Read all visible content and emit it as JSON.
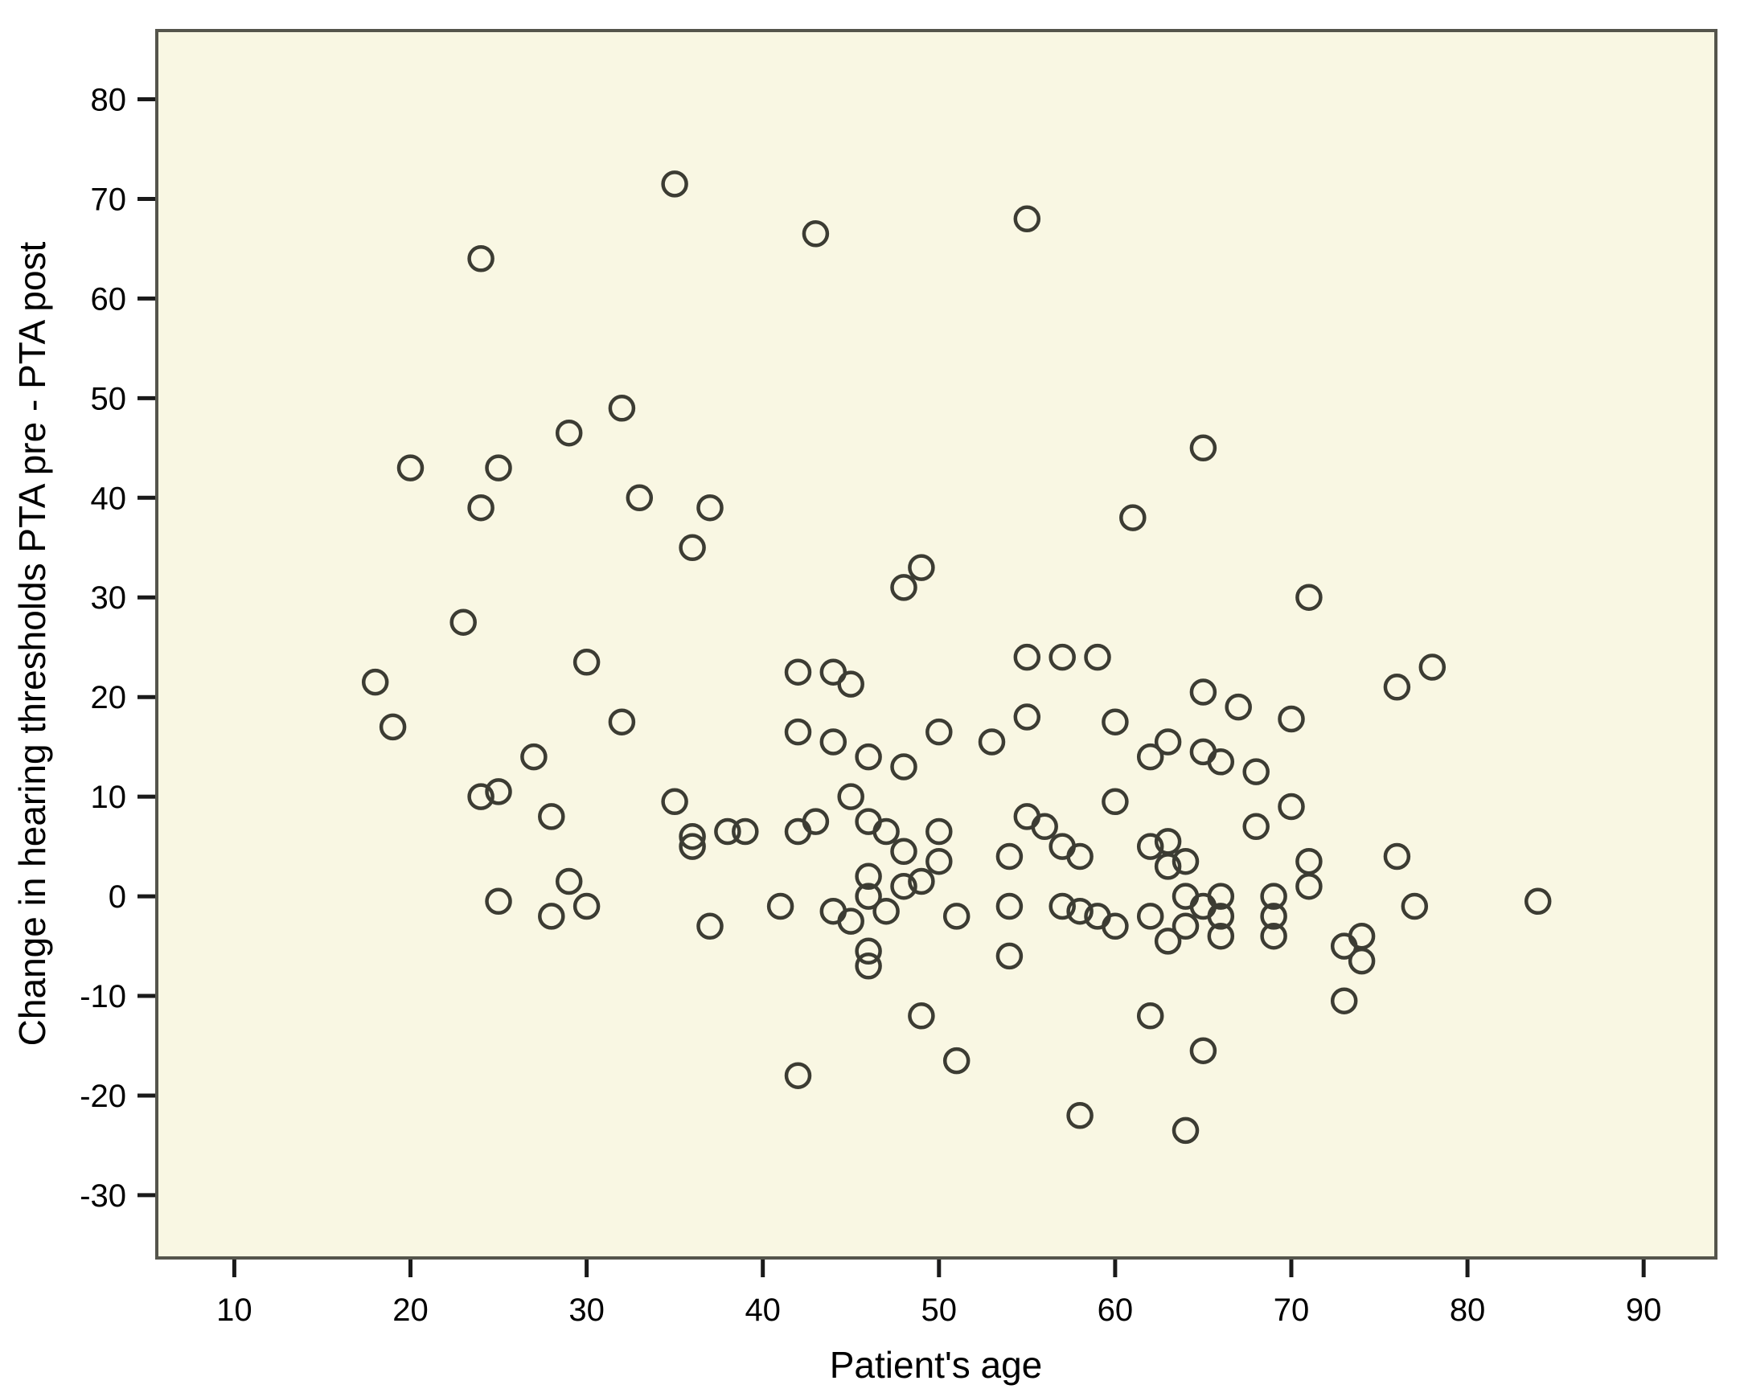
{
  "chart_data": {
    "type": "scatter",
    "title": "",
    "xlabel": "Patient's age",
    "ylabel": "Change in hearing thresholds PTA pre - PTA post",
    "x_ticks": [
      10,
      20,
      30,
      40,
      50,
      60,
      70,
      80,
      90
    ],
    "y_ticks": [
      80,
      70,
      60,
      50,
      40,
      30,
      20,
      10,
      0,
      -10,
      -20,
      -30
    ],
    "xlim": [
      5.6,
      94.1
    ],
    "ylim": [
      -36.3,
      86.9
    ],
    "grid": false,
    "legend": "none",
    "marker": "open-circle",
    "points": [
      [
        35,
        71.5
      ],
      [
        43,
        66.5
      ],
      [
        55,
        68
      ],
      [
        24,
        64
      ],
      [
        32,
        49
      ],
      [
        29,
        46.5
      ],
      [
        65,
        45
      ],
      [
        20,
        43
      ],
      [
        25,
        43
      ],
      [
        33,
        40
      ],
      [
        24,
        39
      ],
      [
        37,
        39
      ],
      [
        61,
        38
      ],
      [
        36,
        35
      ],
      [
        48,
        31
      ],
      [
        49,
        33
      ],
      [
        71,
        30
      ],
      [
        23,
        27.5
      ],
      [
        30,
        23.5
      ],
      [
        55,
        24
      ],
      [
        57,
        24
      ],
      [
        59,
        24
      ],
      [
        42,
        22.5
      ],
      [
        44,
        22.5
      ],
      [
        45,
        21.3
      ],
      [
        18,
        21.5
      ],
      [
        76,
        21
      ],
      [
        78,
        23
      ],
      [
        65,
        20.5
      ],
      [
        67,
        19
      ],
      [
        60,
        17.5
      ],
      [
        70,
        17.8
      ],
      [
        19,
        17
      ],
      [
        32,
        17.5
      ],
      [
        50,
        16.5
      ],
      [
        55,
        18
      ],
      [
        42,
        16.5
      ],
      [
        44,
        15.5
      ],
      [
        53,
        15.5
      ],
      [
        46,
        14
      ],
      [
        48,
        13
      ],
      [
        63,
        15.5
      ],
      [
        62,
        14
      ],
      [
        65,
        14.5
      ],
      [
        66,
        13.5
      ],
      [
        68,
        12.5
      ],
      [
        27,
        14
      ],
      [
        60,
        9.5
      ],
      [
        70,
        9
      ],
      [
        35,
        9.5
      ],
      [
        45,
        10
      ],
      [
        24,
        10
      ],
      [
        25,
        10.5
      ],
      [
        28,
        8
      ],
      [
        38,
        6.5
      ],
      [
        39,
        6.5
      ],
      [
        42,
        6.5
      ],
      [
        43,
        7.5
      ],
      [
        46,
        7.5
      ],
      [
        47,
        6.5
      ],
      [
        36,
        6
      ],
      [
        36,
        5
      ],
      [
        48,
        4.5
      ],
      [
        50,
        6.5
      ],
      [
        50,
        3.5
      ],
      [
        55,
        8
      ],
      [
        56,
        7
      ],
      [
        57,
        5
      ],
      [
        58,
        4
      ],
      [
        68,
        7
      ],
      [
        62,
        5
      ],
      [
        63,
        5.5
      ],
      [
        76,
        4
      ],
      [
        54,
        4
      ],
      [
        63,
        3
      ],
      [
        64,
        3.5
      ],
      [
        71,
        3.5
      ],
      [
        71,
        1
      ],
      [
        48,
        1
      ],
      [
        49,
        1.5
      ],
      [
        46,
        2
      ],
      [
        46,
        0
      ],
      [
        47,
        -1.5
      ],
      [
        25,
        -0.5
      ],
      [
        29,
        1.5
      ],
      [
        28,
        -2
      ],
      [
        30,
        -1
      ],
      [
        41,
        -1
      ],
      [
        44,
        -1.5
      ],
      [
        45,
        -2.5
      ],
      [
        37,
        -3
      ],
      [
        51,
        -2
      ],
      [
        54,
        -1
      ],
      [
        57,
        -1
      ],
      [
        58,
        -1.5
      ],
      [
        59,
        -2
      ],
      [
        60,
        -3
      ],
      [
        62,
        -2
      ],
      [
        63,
        -4.5
      ],
      [
        64,
        -3
      ],
      [
        64,
        0
      ],
      [
        65,
        -1
      ],
      [
        66,
        0
      ],
      [
        66,
        -2
      ],
      [
        66,
        -4
      ],
      [
        69,
        0
      ],
      [
        69,
        -2
      ],
      [
        69,
        -4
      ],
      [
        46,
        -5.5
      ],
      [
        46,
        -7
      ],
      [
        54,
        -6
      ],
      [
        73,
        -5
      ],
      [
        74,
        -4
      ],
      [
        74,
        -6.5
      ],
      [
        77,
        -1
      ],
      [
        84,
        -0.5
      ],
      [
        73,
        -10.5
      ],
      [
        62,
        -12
      ],
      [
        49,
        -12
      ],
      [
        65,
        -15.5
      ],
      [
        51,
        -16.5
      ],
      [
        42,
        -18
      ],
      [
        58,
        -22
      ],
      [
        64,
        -23.5
      ]
    ]
  },
  "colors": {
    "page_bg": "#ffffff",
    "plot_bg": "#f9f7e3",
    "frame": "#55554c",
    "tick": "#1a1a1a",
    "point": "#3c3c33",
    "text": "#000000"
  }
}
